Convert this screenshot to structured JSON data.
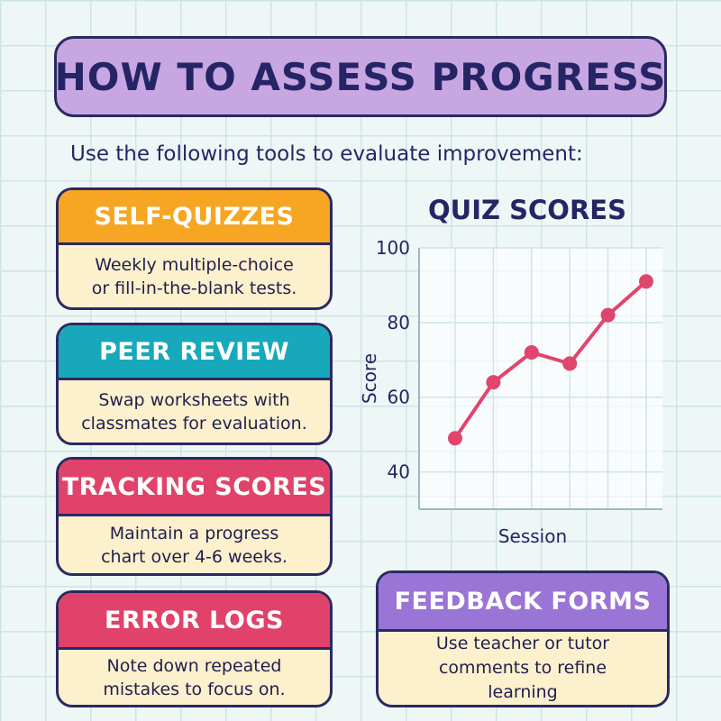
{
  "title": "HOW TO ASSESS PROGRESS",
  "intro": "Use the following tools to evaluate improvement:",
  "cards": [
    {
      "heading": "SELF-QUIZZES",
      "lines": [
        "Weekly multiple-choice",
        "or fill-in-the-blank tests."
      ],
      "color": "#f6a623"
    },
    {
      "heading": "PEER REVIEW",
      "lines": [
        "Swap worksheets with",
        "classmates for evaluation."
      ],
      "color": "#18a8bc"
    },
    {
      "heading": "TRACKING SCORES",
      "lines": [
        "Maintain a progress",
        "chart over 4-6 weeks."
      ],
      "color": "#e1426a"
    },
    {
      "heading": "ERROR LOGS",
      "lines": [
        "Note down repeated",
        "mistakes to focus on."
      ],
      "color": "#e1426a"
    },
    {
      "heading": "FEEDBACK FORMS",
      "lines": [
        "Use teacher or tutor",
        "comments to refine",
        "learning"
      ],
      "color": "#9a75d6"
    }
  ],
  "chart_data": {
    "type": "line",
    "title": "QUIZ SCORES",
    "xlabel": "Session",
    "ylabel": "Score",
    "x": [
      1,
      2,
      3,
      4,
      5,
      6
    ],
    "y": [
      49,
      64,
      72,
      69,
      82,
      91
    ],
    "yticks": [
      40,
      60,
      80,
      100
    ],
    "ylim": [
      30,
      100
    ],
    "grid": true,
    "line_color": "#e0456d"
  }
}
